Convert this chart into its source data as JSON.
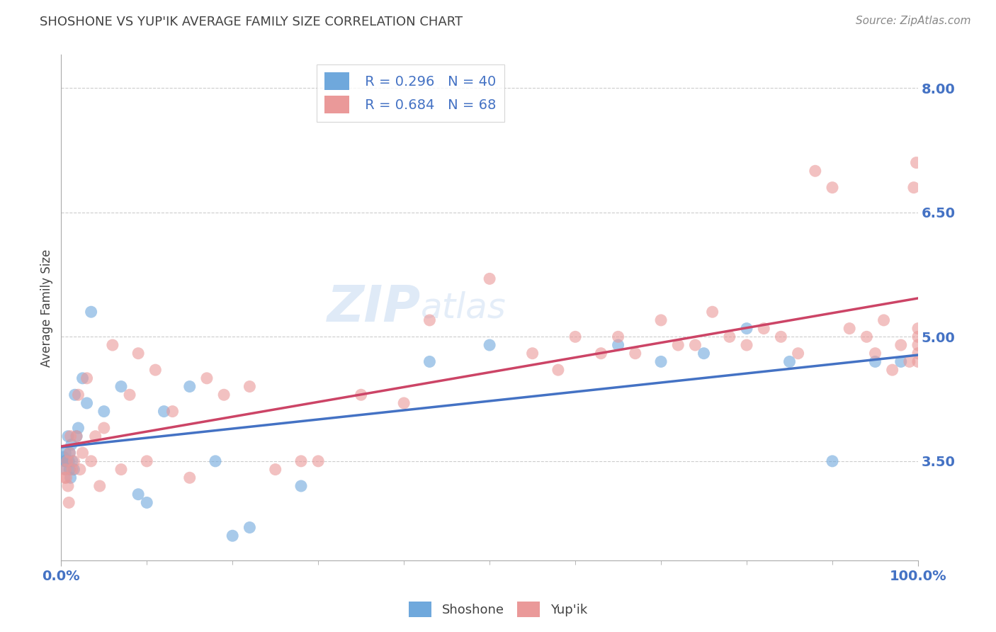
{
  "title": "SHOSHONE VS YUP'IK AVERAGE FAMILY SIZE CORRELATION CHART",
  "source_text": "Source: ZipAtlas.com",
  "ylabel": "Average Family Size",
  "legend_label_1": "Shoshone",
  "legend_label_2": "Yup'ik",
  "R1": 0.296,
  "N1": 40,
  "R2": 0.684,
  "N2": 68,
  "color1": "#6fa8dc",
  "color2": "#ea9999",
  "line_color1": "#4472c4",
  "line_color2": "#cc4466",
  "title_color": "#434343",
  "axis_label_color": "#434343",
  "ytick_color": "#4472c4",
  "ytick_values": [
    3.5,
    5.0,
    6.5,
    8.0
  ],
  "xlim": [
    0,
    100
  ],
  "ylim": [
    2.3,
    8.4
  ],
  "shoshone_x": [
    0.3,
    0.4,
    0.5,
    0.5,
    0.6,
    0.7,
    0.8,
    0.9,
    1.0,
    1.0,
    1.1,
    1.2,
    1.3,
    1.5,
    1.6,
    1.8,
    2.0,
    2.5,
    3.0,
    3.5,
    5.0,
    7.0,
    9.0,
    10.0,
    12.0,
    15.0,
    18.0,
    20.0,
    22.0,
    28.0,
    43.0,
    50.0,
    65.0,
    70.0,
    75.0,
    80.0,
    85.0,
    90.0,
    95.0,
    98.0
  ],
  "shoshone_y": [
    3.55,
    3.5,
    3.6,
    3.4,
    3.5,
    3.5,
    3.8,
    3.5,
    3.6,
    3.4,
    3.3,
    3.7,
    3.5,
    3.4,
    4.3,
    3.8,
    3.9,
    4.5,
    4.2,
    5.3,
    4.1,
    4.4,
    3.1,
    3.0,
    4.1,
    4.4,
    3.5,
    2.6,
    2.7,
    3.2,
    4.7,
    4.9,
    4.9,
    4.7,
    4.8,
    5.1,
    4.7,
    3.5,
    4.7,
    4.7
  ],
  "yupik_x": [
    0.4,
    0.5,
    0.6,
    0.7,
    0.8,
    0.9,
    1.0,
    1.1,
    1.3,
    1.5,
    1.8,
    2.0,
    2.2,
    2.5,
    3.0,
    3.5,
    4.0,
    4.5,
    5.0,
    6.0,
    7.0,
    8.0,
    9.0,
    10.0,
    11.0,
    13.0,
    15.0,
    17.0,
    19.0,
    22.0,
    25.0,
    28.0,
    30.0,
    35.0,
    40.0,
    43.0,
    50.0,
    55.0,
    58.0,
    60.0,
    63.0,
    65.0,
    67.0,
    70.0,
    72.0,
    74.0,
    76.0,
    78.0,
    80.0,
    82.0,
    84.0,
    86.0,
    88.0,
    90.0,
    92.0,
    94.0,
    95.0,
    96.0,
    97.0,
    98.0,
    99.0,
    99.5,
    99.8,
    100.0,
    100.0,
    100.0,
    100.0,
    100.0
  ],
  "yupik_y": [
    3.3,
    3.4,
    3.3,
    3.5,
    3.2,
    3.0,
    3.6,
    3.8,
    3.4,
    3.5,
    3.8,
    4.3,
    3.4,
    3.6,
    4.5,
    3.5,
    3.8,
    3.2,
    3.9,
    4.9,
    3.4,
    4.3,
    4.8,
    3.5,
    4.6,
    4.1,
    3.3,
    4.5,
    4.3,
    4.4,
    3.4,
    3.5,
    3.5,
    4.3,
    4.2,
    5.2,
    5.7,
    4.8,
    4.6,
    5.0,
    4.8,
    5.0,
    4.8,
    5.2,
    4.9,
    4.9,
    5.3,
    5.0,
    4.9,
    5.1,
    5.0,
    4.8,
    7.0,
    6.8,
    5.1,
    5.0,
    4.8,
    5.2,
    4.6,
    4.9,
    4.7,
    6.8,
    7.1,
    5.0,
    5.1,
    4.9,
    4.7,
    4.8
  ]
}
